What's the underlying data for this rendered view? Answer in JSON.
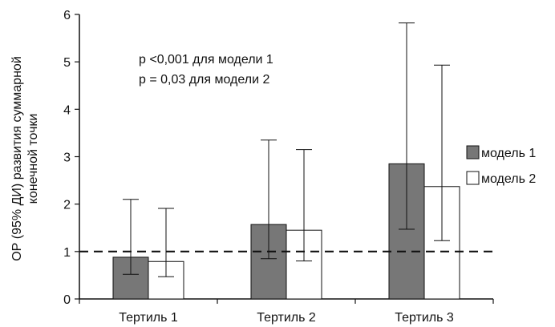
{
  "chart_data": {
    "type": "bar",
    "categories": [
      "Тертиль 1",
      "Тертиль 2",
      "Тертиль 3"
    ],
    "series": [
      {
        "name": "модель 1",
        "color": "#777777",
        "values": [
          0.88,
          1.57,
          2.85
        ],
        "ci_low": [
          0.52,
          0.85,
          1.47
        ],
        "ci_high": [
          2.1,
          3.35,
          5.82
        ]
      },
      {
        "name": "модель 2",
        "color": "#ffffff",
        "values": [
          0.79,
          1.45,
          2.37
        ],
        "ci_low": [
          0.47,
          0.8,
          1.23
        ],
        "ci_high": [
          1.91,
          3.15,
          4.93
        ]
      }
    ],
    "ylabel_lines": [
      "ОР (95% ДИ) развития суммарной",
      "конечной точки"
    ],
    "xlabel": "",
    "ylim": [
      0,
      6
    ],
    "yticks": [
      0,
      1,
      2,
      3,
      4,
      5,
      6
    ],
    "reference_line": {
      "y": 1,
      "style": "dashed"
    },
    "annotations": [
      "p <0,001 для модели 1",
      "p = 0,03 для модели 2"
    ],
    "legend_position": "right",
    "grid": false
  }
}
